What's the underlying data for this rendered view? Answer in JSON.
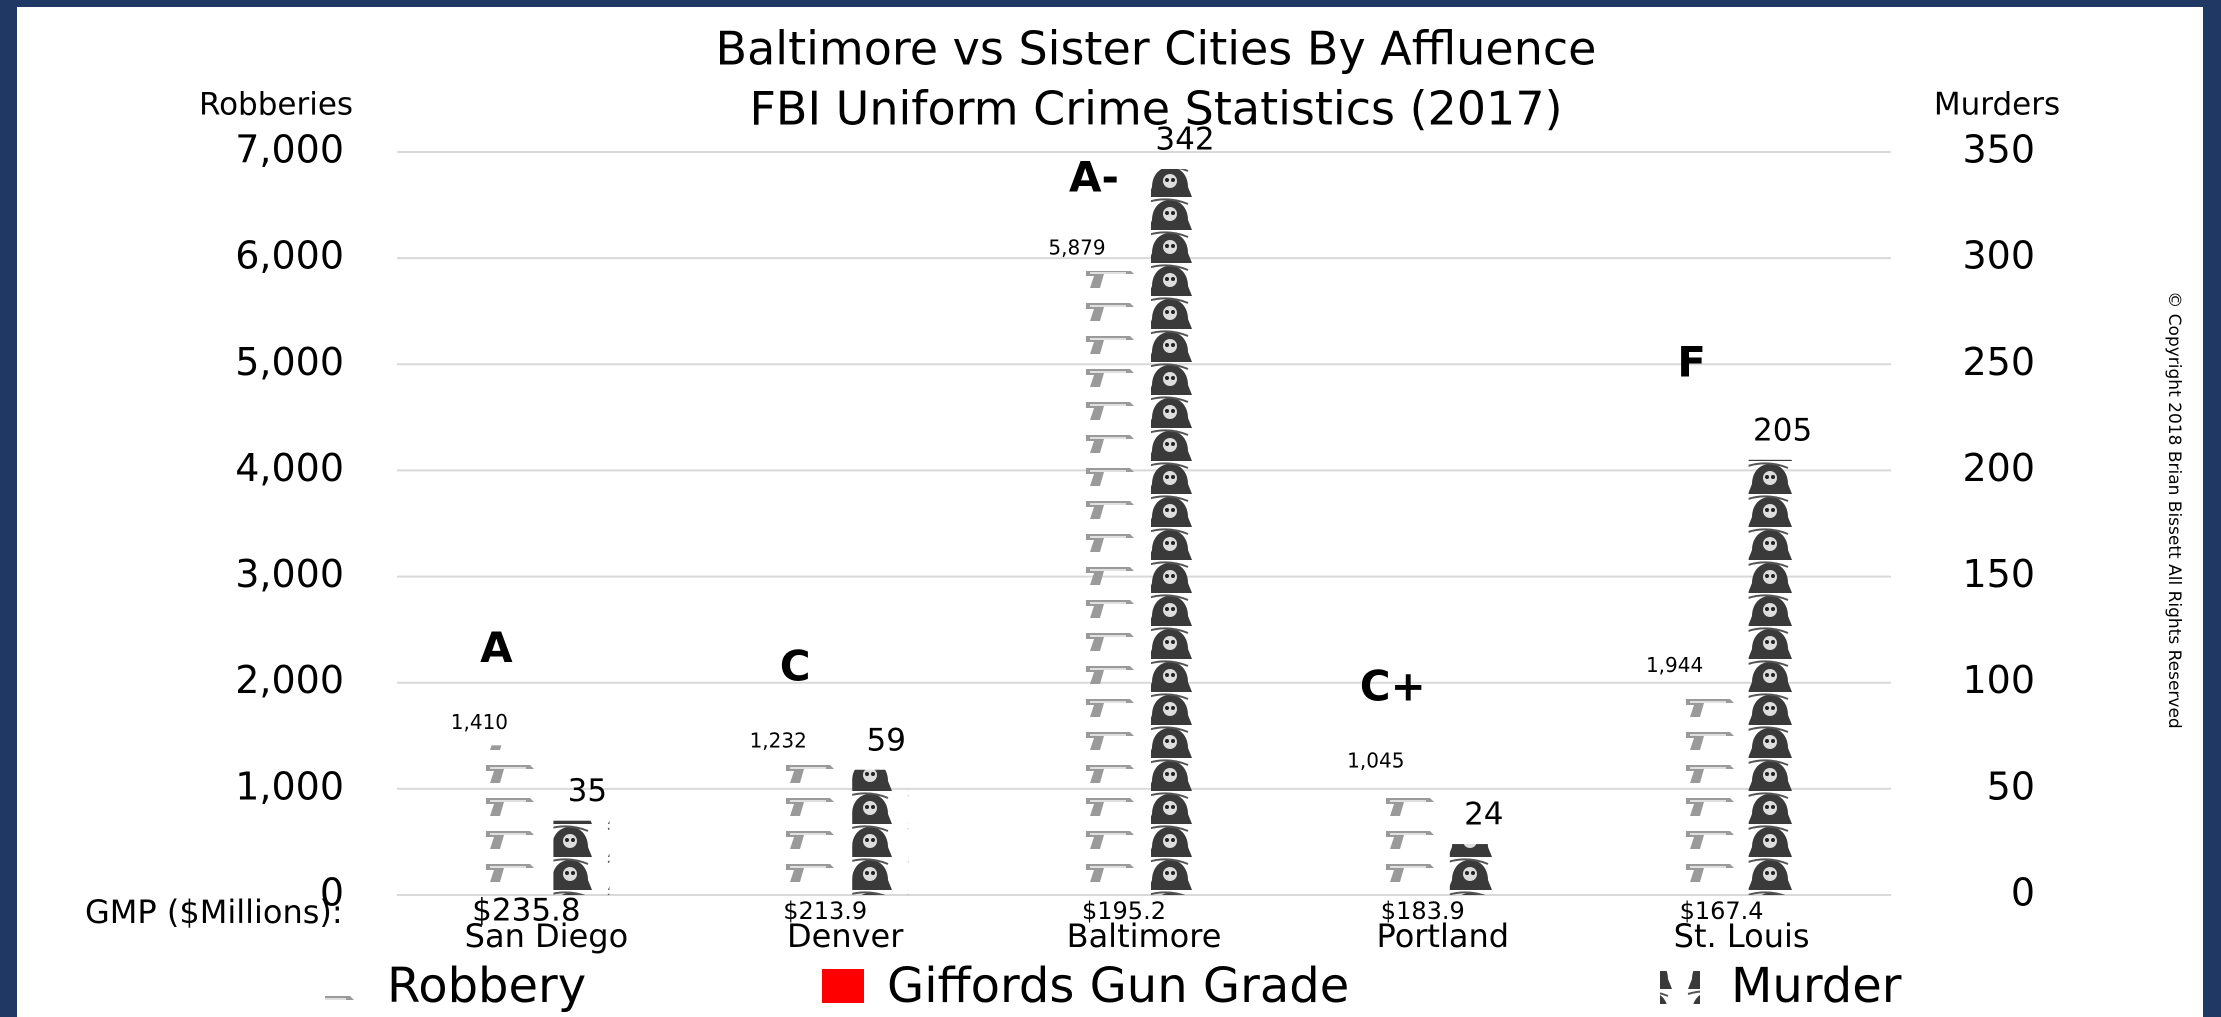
{
  "chart_data": {
    "type": "pictograph_bar",
    "title": [
      "Baltimore vs Sister Cities By Affluence",
      "FBI Uniform Crime Statistics (2017)"
    ],
    "y_axis_label": "Robberies",
    "y2_axis_label": "Murders",
    "categories": [
      "San Diego",
      "Denver",
      "Baltimore",
      "Portland",
      "St. Louis"
    ],
    "series": [
      {
        "name": "Robbery",
        "color": "#a6a6a6",
        "values": [
          1410,
          1232,
          5879,
          1045,
          1944
        ],
        "value_labels": [
          "1,410",
          "1,232",
          "5,879",
          "1,045",
          "1,944"
        ]
      },
      {
        "name": "Murder",
        "color": "#404040",
        "axis": "y2",
        "values": [
          35,
          59,
          342,
          24,
          205
        ]
      }
    ],
    "grades": {
      "name": "Giffords Gun Grade",
      "color": "#ff0000",
      "labels": [
        "A",
        "C",
        "A-",
        "C+",
        "F"
      ]
    },
    "gmp_label": "GMP ($Millions):",
    "gmp": [
      "$235.8",
      "$213.9",
      "$195.2",
      "$183.9",
      "$167.4"
    ],
    "ylim": [
      0,
      7000
    ],
    "yticks": [
      0,
      {
        "value": 1000,
        "label": "1,000"
      },
      {
        "value": 2000,
        "label": "2,000"
      },
      {
        "value": 3000,
        "label": "3,000"
      },
      {
        "value": 4000,
        "label": "4,000"
      },
      {
        "value": 5000,
        "label": "5,000"
      },
      {
        "value": 6000,
        "label": "6,000"
      },
      {
        "value": 7000,
        "label": "7,000"
      }
    ],
    "y2lim": [
      0,
      350
    ],
    "y2ticks": [
      0,
      50,
      100,
      150,
      200,
      250,
      300,
      350
    ],
    "grid": true,
    "copyright": "© Copyright 2018 Brian Bissett All Rights Reserved"
  }
}
